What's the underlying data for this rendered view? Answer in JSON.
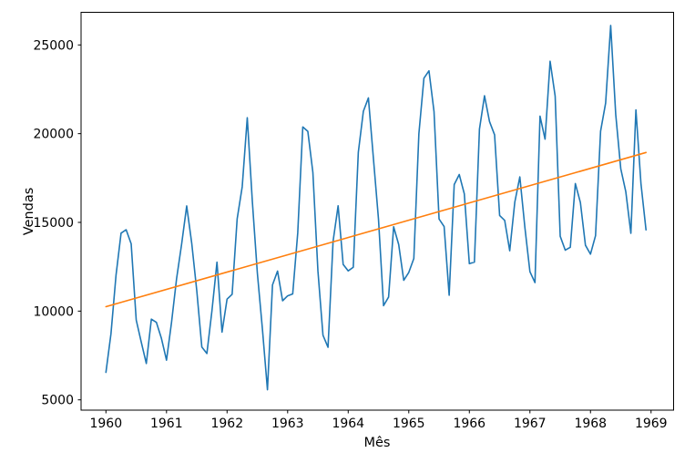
{
  "figure": {
    "background_color": "#ffffff",
    "axes_edge_color": "#000000"
  },
  "chart_data": {
    "type": "line",
    "title": "",
    "xlabel": "Mês",
    "ylabel": "Vendas",
    "grid": false,
    "legend": "none",
    "x_tick_labels": [
      "1960",
      "1961",
      "1962",
      "1963",
      "1964",
      "1965",
      "1966",
      "1967",
      "1968",
      "1969"
    ],
    "y_tick_labels": [
      "5000",
      "10000",
      "15000",
      "20000",
      "25000"
    ],
    "y_tick_values": [
      5000,
      10000,
      15000,
      20000,
      25000
    ],
    "x_unit": "months since Jan 1960, 12 points per year",
    "xlim_months": [
      -5.1,
      112.3
    ],
    "ylim": [
      4370,
      26840
    ],
    "series": [
      {
        "name": "vendas-mensais",
        "kind": "line",
        "color": "#1f77b4",
        "start_month_index": 0,
        "values": [
          6550,
          8728,
          12026,
          14395,
          14587,
          13791,
          9498,
          8251,
          7049,
          9545,
          9364,
          8456,
          7237,
          9374,
          11837,
          13784,
          15926,
          13821,
          11143,
          7975,
          7610,
          10015,
          12759,
          8816,
          10677,
          10947,
          15200,
          17010,
          20900,
          16205,
          12143,
          8997,
          5568,
          11474,
          12256,
          10583,
          10862,
          10965,
          14405,
          20379,
          20128,
          17816,
          12268,
          8642,
          7962,
          13932,
          15936,
          12628,
          12267,
          12470,
          18944,
          21259,
          22015,
          18581,
          15175,
          10306,
          10792,
          14752,
          13754,
          11738,
          12181,
          12965,
          19990,
          23125,
          23541,
          21247,
          15189,
          14767,
          10895,
          17130,
          17697,
          16611,
          12674,
          12760,
          20249,
          22135,
          20677,
          19933,
          15388,
          15113,
          13401,
          16135,
          17562,
          14720,
          12225,
          11608,
          20985,
          19692,
          24081,
          22114,
          14220,
          13434,
          13598,
          17187,
          16119,
          13713,
          13210,
          14251,
          20139,
          21725,
          26099,
          21084,
          18024,
          16722,
          14385,
          21342,
          17180,
          14577
        ]
      },
      {
        "name": "tendencia-linear",
        "kind": "trend-line",
        "color": "#ff7f0e",
        "points": [
          {
            "month_index": 0,
            "value": 10251
          },
          {
            "month_index": 107,
            "value": 18939
          }
        ]
      }
    ]
  }
}
